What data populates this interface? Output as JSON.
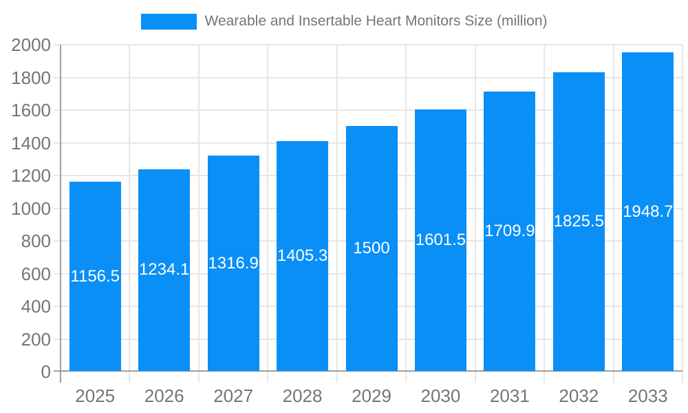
{
  "legend": {
    "series_label": "Wearable and Insertable Heart Monitors Size (million)"
  },
  "chart_data": {
    "type": "bar",
    "title": "Wearable and Insertable Heart Monitors Size (million)",
    "xlabel": "",
    "ylabel": "",
    "categories": [
      "2025",
      "2026",
      "2027",
      "2028",
      "2029",
      "2030",
      "2031",
      "2032",
      "2033"
    ],
    "series": [
      {
        "name": "Wearable and Insertable Heart Monitors Size (million)",
        "values": [
          1156.5,
          1234.1,
          1316.9,
          1405.3,
          1500,
          1601.5,
          1709.9,
          1825.5,
          1948.7
        ]
      }
    ],
    "value_labels": [
      "1156.5",
      "1234.1",
      "1316.9",
      "1405.3",
      "1500",
      "1601.5",
      "1709.9",
      "1825.5",
      "1948.7"
    ],
    "ylim": [
      0,
      2000
    ],
    "ytick_step": 200,
    "yticks": [
      0,
      200,
      400,
      600,
      800,
      1000,
      1200,
      1400,
      1600,
      1800,
      2000
    ],
    "grid": true,
    "legend_position": "top-center",
    "colors": {
      "bar": "#0a8ff7",
      "value_label": "#ffffff",
      "axis_text": "#757575",
      "grid_line": "#e6e6e6",
      "axis_line": "#9e9e9e",
      "background": "#ffffff"
    }
  }
}
